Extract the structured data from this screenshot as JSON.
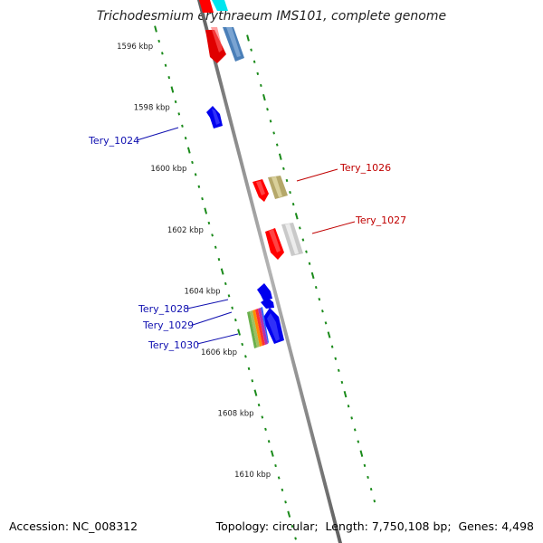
{
  "title": "Trichodesmium erythraeum IMS101, complete genome",
  "footer": {
    "accession_label": "Accession:",
    "accession": "NC_008312",
    "topology_label": "Topology:",
    "topology": "circular",
    "length_label": "Length:",
    "length": "7,750,108 bp",
    "genes_label": "Genes:",
    "genes": "4,498"
  },
  "ruler": {
    "unit": "kbp",
    "ticks": [
      1596,
      1598,
      1600,
      1602,
      1604,
      1606,
      1608,
      1610
    ]
  },
  "colors": {
    "backbone": "#8a8a8a",
    "tick": "#1a8a1a",
    "forward_label": "#c00000",
    "reverse_label": "#1010b0",
    "red": "#ff0000",
    "blue": "#0000ee",
    "steelblue": "#4a7fb8",
    "cyan": "#00e5ee",
    "khaki": "#b5a86a",
    "silver": "#c9c9c9"
  },
  "genes": [
    {
      "label": "Tery_1024",
      "strand": "reverse"
    },
    {
      "label": "Tery_1026",
      "strand": "forward"
    },
    {
      "label": "Tery_1027",
      "strand": "forward"
    },
    {
      "label": "Tery_1028",
      "strand": "reverse"
    },
    {
      "label": "Tery_1029",
      "strand": "reverse"
    },
    {
      "label": "Tery_1030",
      "strand": "reverse"
    }
  ]
}
